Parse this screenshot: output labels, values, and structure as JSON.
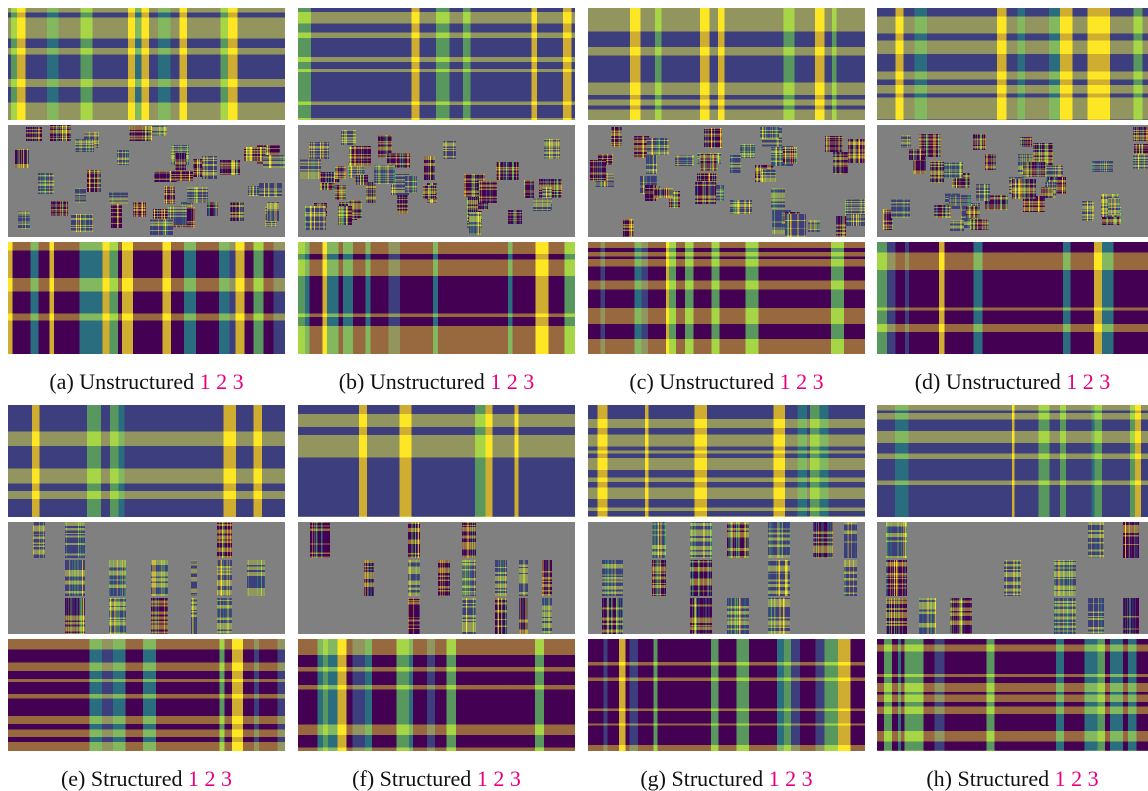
{
  "figure": {
    "panels": [
      {
        "label": "(a)",
        "caption": "Unstructured",
        "links": [
          "1",
          "2",
          "3"
        ]
      },
      {
        "label": "(b)",
        "caption": "Unstructured",
        "links": [
          "1",
          "2",
          "3"
        ]
      },
      {
        "label": "(c)",
        "caption": "Unstructured",
        "links": [
          "1",
          "2",
          "3"
        ]
      },
      {
        "label": "(d)",
        "caption": "Unstructured",
        "links": [
          "1",
          "2",
          "3"
        ]
      },
      {
        "label": "(e)",
        "caption": "Structured",
        "links": [
          "1",
          "2",
          "3"
        ]
      },
      {
        "label": "(f)",
        "caption": "Structured",
        "links": [
          "1",
          "2",
          "3"
        ]
      },
      {
        "label": "(g)",
        "caption": "Structured",
        "links": [
          "1",
          "2",
          "3"
        ]
      },
      {
        "label": "(h)",
        "caption": "Structured",
        "links": [
          "1",
          "2",
          "3"
        ]
      }
    ]
  }
}
